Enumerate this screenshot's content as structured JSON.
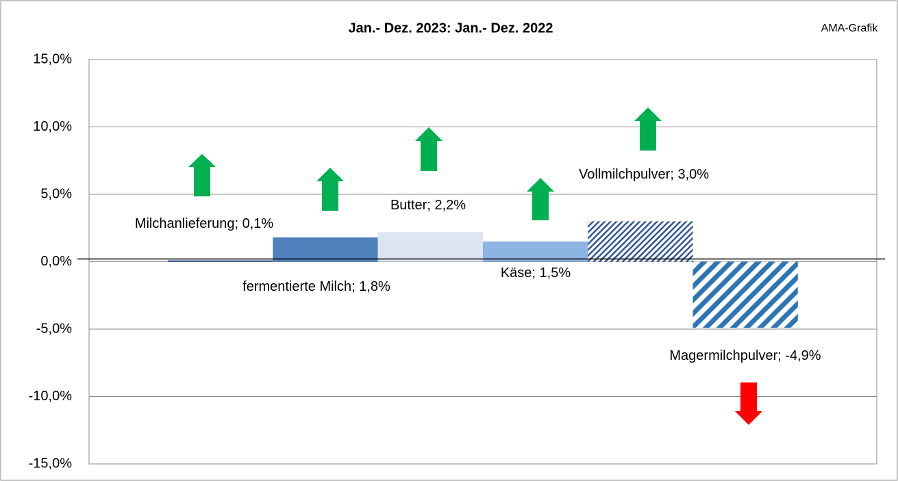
{
  "chart_data": {
    "type": "bar",
    "title": "Jan.- Dez. 2023: Jan.- Dez. 2022",
    "source": "AMA-Grafik",
    "values": [
      0.1,
      1.8,
      2.2,
      1.5,
      3.0,
      -4.9
    ],
    "value_labels": [
      "Milchanlieferung; 0,1%",
      "fermentierte Milch; 1,8%",
      "Butter; 2,2%",
      "Käse; 1,5%",
      "Vollmilchpulver; 3,0%",
      "Magermilchpulver; -4,9%"
    ],
    "colors": [
      "#2f5597",
      "#4f81bd",
      "#dce6f2",
      "#8eb4e3",
      "#2f5597",
      "#2e75b6"
    ],
    "hatch": [
      "none",
      "none",
      "none",
      "none",
      "fine",
      "coarse"
    ],
    "ylim": [
      -15,
      15
    ],
    "yticks": [
      {
        "value": -15,
        "label": "-15,0%"
      },
      {
        "value": -10,
        "label": "-10,0%"
      },
      {
        "value": -5,
        "label": "-5,0%"
      },
      {
        "value": 0,
        "label": "0,0%"
      },
      {
        "value": 5,
        "label": "5,0%"
      },
      {
        "value": 10,
        "label": "10,0%"
      },
      {
        "value": 15,
        "label": "15,0%"
      }
    ],
    "grid": true
  }
}
